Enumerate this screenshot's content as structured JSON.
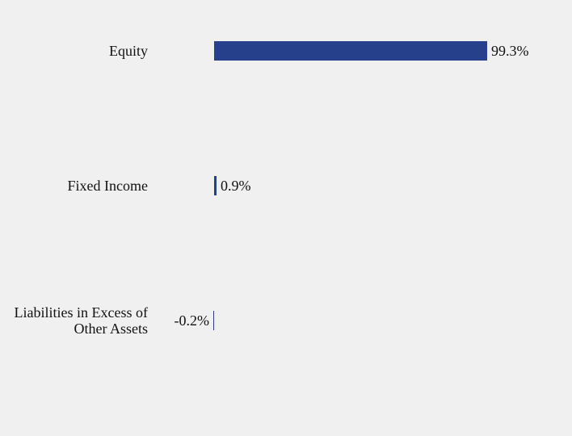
{
  "chart_data": {
    "type": "bar",
    "orientation": "horizontal",
    "title": "",
    "xlabel": "",
    "ylabel": "",
    "categories": [
      [
        "Equity"
      ],
      [
        "Fixed Income"
      ],
      [
        "Liabilities in Excess of",
        "Other Assets"
      ]
    ],
    "values": [
      99.3,
      0.9,
      -0.2
    ],
    "value_labels": [
      "99.3%",
      "0.9%",
      "-0.2%"
    ],
    "xlim": [
      -0.2,
      99.3
    ],
    "grid": false,
    "legend": "none",
    "bar_color": "#27408b",
    "background_color": "#f0f0f0",
    "text_color": "#111111"
  }
}
